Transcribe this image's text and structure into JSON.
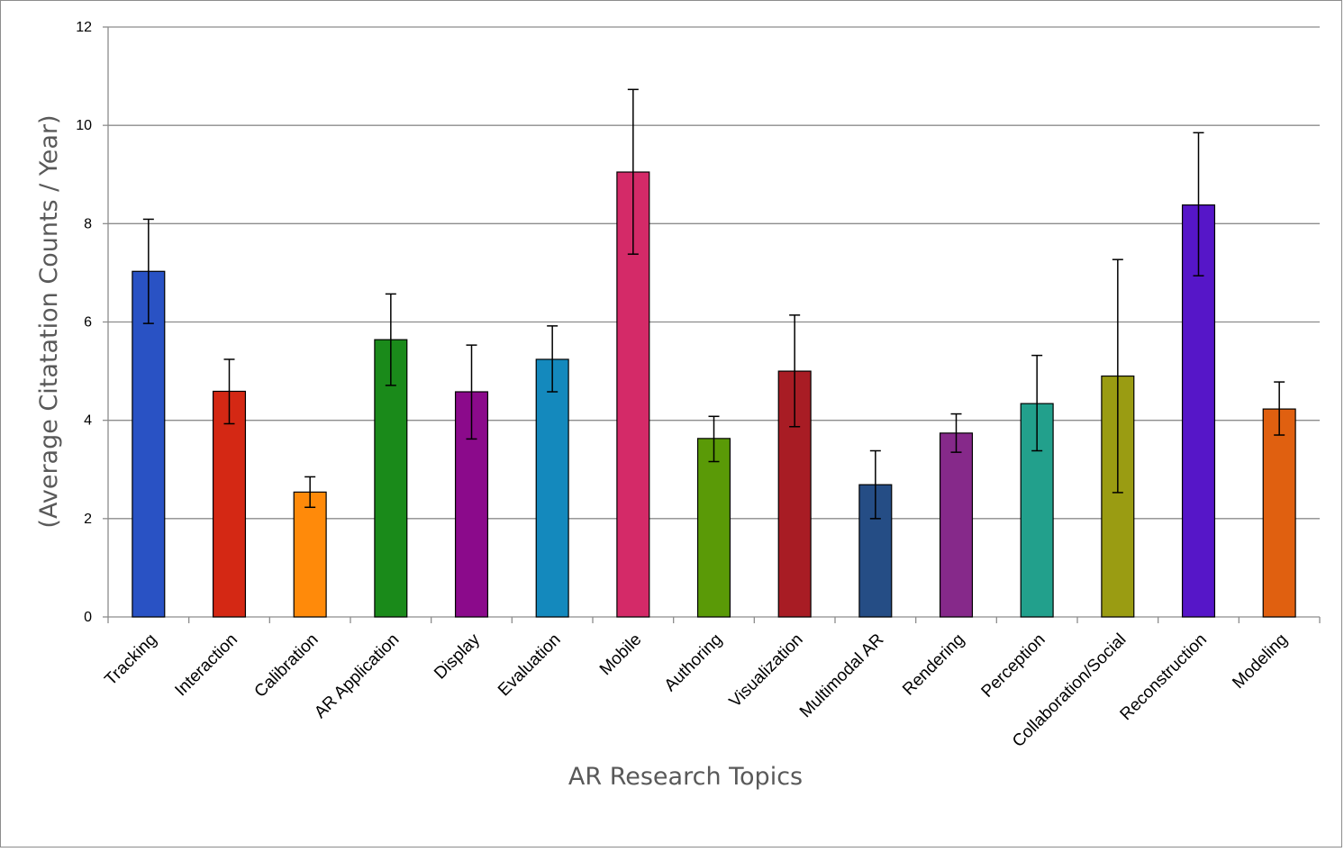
{
  "chart_data": {
    "type": "bar",
    "xlabel": "AR Research  Topics",
    "ylabel": "(Average Citatation Counts / Year)",
    "ylim": [
      0,
      12
    ],
    "yticks": [
      0,
      2,
      4,
      6,
      8,
      10,
      12
    ],
    "grid": true,
    "legend": "none",
    "categories": [
      "Tracking",
      "Interaction",
      "Calibration",
      "AR Application",
      "Display",
      "Evaluation",
      "Mobile",
      "Authoring",
      "Visualization",
      "Multimodal AR",
      "Rendering",
      "Perception",
      "Collaboration/Social",
      "Reconstruction",
      "Modeling"
    ],
    "values": [
      7.03,
      4.59,
      2.54,
      5.64,
      4.58,
      5.24,
      9.05,
      3.63,
      5.0,
      2.69,
      3.74,
      4.34,
      4.9,
      8.38,
      4.23
    ],
    "error_low": [
      5.97,
      3.93,
      2.23,
      4.71,
      3.62,
      4.58,
      7.38,
      3.16,
      3.87,
      2.0,
      3.35,
      3.38,
      2.53,
      6.94,
      3.7
    ],
    "error_high": [
      8.09,
      5.24,
      2.85,
      6.57,
      5.53,
      5.92,
      10.73,
      4.08,
      6.14,
      3.38,
      4.13,
      5.32,
      7.27,
      9.85,
      4.78
    ],
    "colors": [
      "#2952c4",
      "#d42814",
      "#ff8a0a",
      "#1a8a1a",
      "#8b0a8b",
      "#1489bd",
      "#d42a68",
      "#5a9a07",
      "#a81c24",
      "#254d85",
      "#86298a",
      "#22a08c",
      "#9a9c12",
      "#5616c8",
      "#e06010"
    ]
  }
}
